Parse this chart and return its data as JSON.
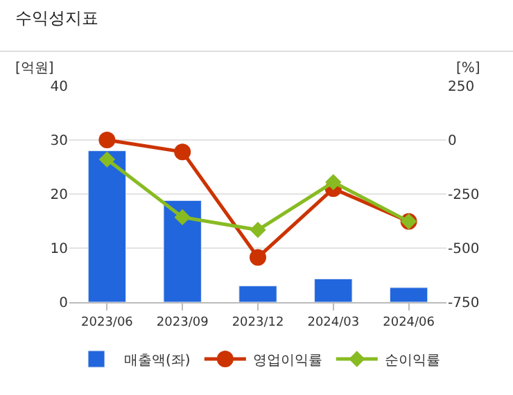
{
  "chart_data": {
    "type": "bar",
    "title": "수익성지표",
    "ylabel": "[억원]",
    "y2label": "[%]",
    "categories": [
      "2023/06",
      "2023/09",
      "2023/12",
      "2024/03",
      "2024/06"
    ],
    "series": [
      {
        "name": "매출액(좌)",
        "color": "#2266dd",
        "values": [
          28,
          18.8,
          3,
          4.3,
          2.7
        ]
      },
      {
        "name": "영업이익률",
        "type": "line",
        "axis": "y2",
        "marker": "circle",
        "color": "#cc3300",
        "values": [
          0,
          -55,
          -543,
          -225,
          -377
        ]
      },
      {
        "name": "순이익률",
        "type": "line",
        "axis": "y2",
        "marker": "diamond",
        "color": "#88bb22",
        "values": [
          -90,
          -357,
          -416,
          -195,
          -377
        ]
      }
    ],
    "ylim": [
      0,
      40
    ],
    "yticks": [
      0,
      10,
      20,
      30,
      40
    ],
    "y2lim": [
      -750,
      250
    ],
    "y2ticks": [
      -750,
      -500,
      -250,
      0,
      250
    ],
    "grid": "y",
    "legend": "bottom"
  }
}
